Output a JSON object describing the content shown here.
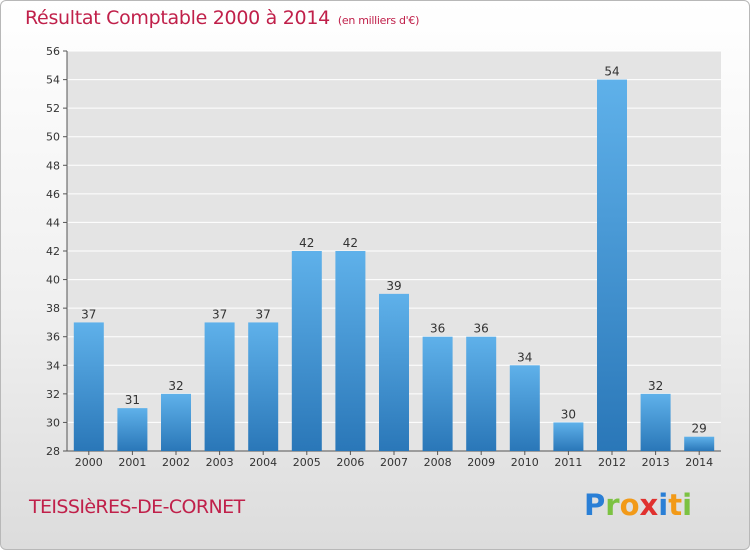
{
  "header": {
    "title": "Résultat Comptable 2000 à 2014",
    "subtitle": "(en milliers d'€)"
  },
  "footer": {
    "commune": "TEISSIèRES-DE-CORNET",
    "logo": {
      "p": "P",
      "r": "r",
      "o": "o",
      "x": "x",
      "i": "i",
      "t": "t",
      "i2": "i"
    }
  },
  "colors": {
    "bar_top": "#5fb1ea",
    "bar_bottom": "#2a77b8",
    "title": "#c0204a"
  },
  "chart_data": {
    "type": "bar",
    "title": "Résultat Comptable 2000 à 2014",
    "ylabel": "",
    "xlabel": "",
    "categories": [
      "2000",
      "2001",
      "2002",
      "2003",
      "2004",
      "2005",
      "2006",
      "2007",
      "2008",
      "2009",
      "2010",
      "2011",
      "2012",
      "2013",
      "2014"
    ],
    "values": [
      37,
      31,
      32,
      37,
      37,
      42,
      42,
      39,
      36,
      36,
      34,
      30,
      54,
      32,
      29
    ],
    "ylim": [
      28,
      56
    ],
    "yticks": [
      28,
      30,
      32,
      34,
      36,
      38,
      40,
      42,
      44,
      46,
      48,
      50,
      52,
      54,
      56
    ],
    "grid": true,
    "legend": "none"
  }
}
